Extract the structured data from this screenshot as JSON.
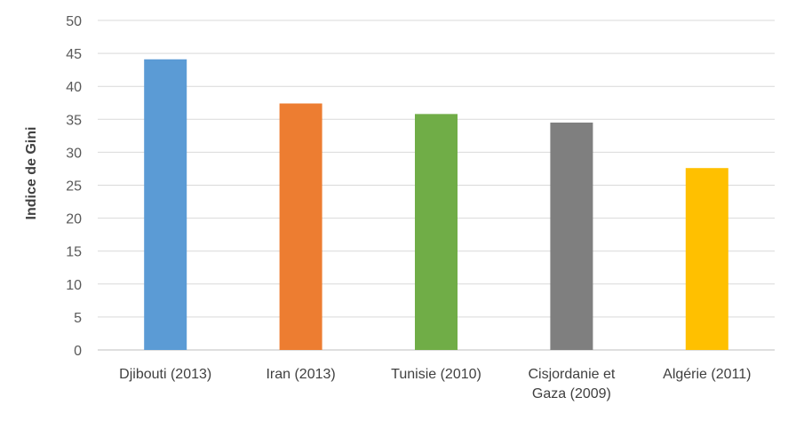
{
  "chart_data": {
    "type": "bar",
    "title": "",
    "xlabel": "",
    "ylabel": "Indice de Gini",
    "categories": [
      [
        "Djibouti (2013)"
      ],
      [
        "Iran (2013)"
      ],
      [
        "Tunisie (2010)"
      ],
      [
        "Cisjordanie et",
        "Gaza (2009)"
      ],
      [
        "Algérie (2011)"
      ]
    ],
    "values": [
      44.1,
      37.4,
      35.8,
      34.5,
      27.6
    ],
    "colors": [
      "#5b9bd5",
      "#ed7d31",
      "#70ad47",
      "#7f7f7f",
      "#ffc000"
    ],
    "ylim": [
      0,
      50
    ],
    "yticks": [
      0,
      5,
      10,
      15,
      20,
      25,
      30,
      35,
      40,
      45,
      50
    ],
    "grid": true,
    "legend": "none"
  }
}
